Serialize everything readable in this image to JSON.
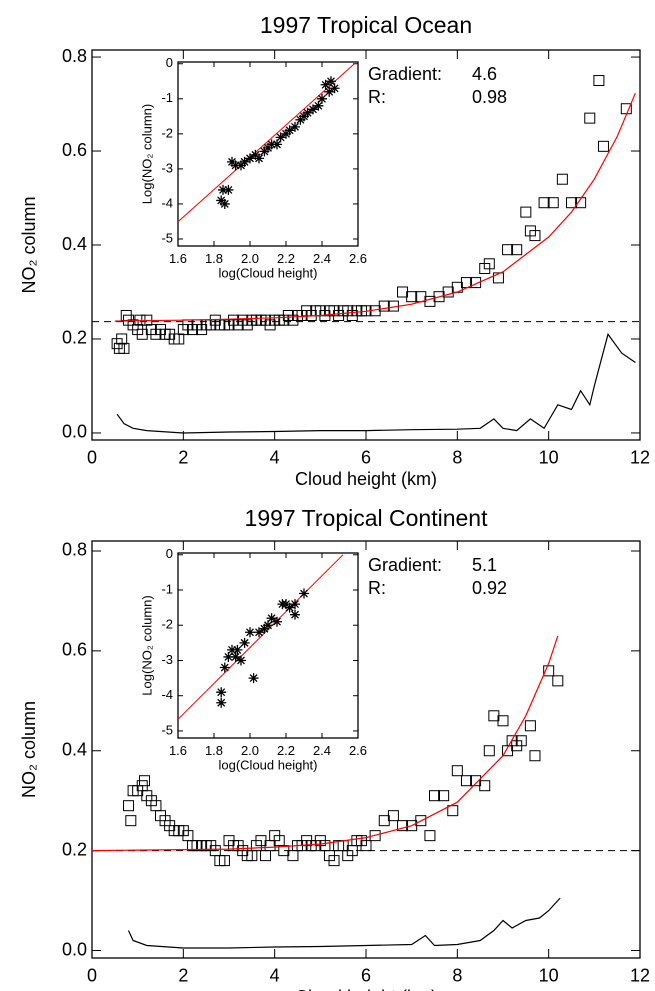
{
  "chart_data": [
    {
      "type": "scatter",
      "title": "1997 Tropical Ocean",
      "x_label": "Cloud height (km)",
      "y_label": "NO₂ column",
      "xlim": [
        0,
        12
      ],
      "ylim": [
        -0.015,
        0.815
      ],
      "xticks": [
        0,
        2,
        4,
        6,
        8,
        10,
        12
      ],
      "yticks": [
        {
          "value": 0,
          "label": "0.0"
        },
        0.2,
        0.4,
        0.6,
        0.8
      ],
      "points": {
        "color": "#000000",
        "x": [
          0.55,
          0.6,
          0.65,
          0.7,
          0.75,
          0.8,
          0.9,
          1.0,
          1.05,
          1.1,
          1.2,
          1.3,
          1.4,
          1.5,
          1.6,
          1.7,
          1.8,
          1.9,
          2.0,
          2.1,
          2.2,
          2.3,
          2.4,
          2.5,
          2.6,
          2.7,
          2.8,
          2.9,
          3.0,
          3.1,
          3.2,
          3.3,
          3.4,
          3.5,
          3.6,
          3.7,
          3.8,
          3.9,
          4.0,
          4.1,
          4.2,
          4.3,
          4.4,
          4.5,
          4.6,
          4.7,
          4.8,
          4.9,
          5.0,
          5.1,
          5.2,
          5.3,
          5.4,
          5.5,
          5.6,
          5.7,
          5.8,
          5.9,
          6.0,
          6.2,
          6.4,
          6.6,
          6.8,
          7.0,
          7.2,
          7.4,
          7.6,
          7.8,
          8.0,
          8.2,
          8.4,
          8.6,
          8.7,
          8.9,
          9.1,
          9.3,
          9.5,
          9.6,
          9.7,
          9.9,
          10.1,
          10.3,
          10.5,
          10.7,
          10.9,
          11.1,
          11.2,
          11.7
        ],
        "values": [
          0.19,
          0.18,
          0.2,
          0.18,
          0.25,
          0.24,
          0.23,
          0.22,
          0.24,
          0.21,
          0.24,
          0.22,
          0.21,
          0.22,
          0.21,
          0.21,
          0.2,
          0.2,
          0.22,
          0.23,
          0.22,
          0.23,
          0.22,
          0.23,
          0.23,
          0.24,
          0.23,
          0.23,
          0.23,
          0.24,
          0.23,
          0.24,
          0.23,
          0.24,
          0.24,
          0.24,
          0.24,
          0.23,
          0.24,
          0.24,
          0.24,
          0.25,
          0.24,
          0.25,
          0.25,
          0.26,
          0.25,
          0.26,
          0.26,
          0.25,
          0.26,
          0.26,
          0.25,
          0.26,
          0.26,
          0.25,
          0.26,
          0.26,
          0.26,
          0.26,
          0.27,
          0.27,
          0.3,
          0.29,
          0.29,
          0.28,
          0.29,
          0.3,
          0.31,
          0.32,
          0.32,
          0.35,
          0.36,
          0.33,
          0.39,
          0.39,
          0.47,
          0.43,
          0.42,
          0.49,
          0.49,
          0.54,
          0.49,
          0.49,
          0.67,
          0.75,
          0.61,
          0.69
        ]
      },
      "fit": {
        "color": "#ff0000",
        "x": [
          0.5,
          1,
          2,
          3,
          4,
          5,
          6,
          7,
          8,
          9,
          10,
          10.5,
          11,
          11.5,
          11.9
        ],
        "values": [
          0.238,
          0.239,
          0.24,
          0.242,
          0.245,
          0.25,
          0.259,
          0.274,
          0.3,
          0.343,
          0.417,
          0.47,
          0.54,
          0.631,
          0.723
        ]
      },
      "reference_line": 0.237,
      "lower_line": {
        "color": "#000000",
        "x": [
          0.55,
          0.7,
          0.9,
          1.2,
          2,
          3,
          4,
          5,
          6,
          7,
          8,
          8.5,
          8.8,
          9.0,
          9.3,
          9.6,
          9.9,
          10.2,
          10.5,
          10.7,
          10.9,
          11.0,
          11.3,
          11.6,
          11.9
        ],
        "values": [
          0.04,
          0.02,
          0.01,
          0.005,
          0.0,
          0.002,
          0.003,
          0.005,
          0.005,
          0.007,
          0.008,
          0.01,
          0.03,
          0.01,
          0.005,
          0.03,
          0.01,
          0.06,
          0.05,
          0.09,
          0.06,
          0.1,
          0.21,
          0.17,
          0.15
        ]
      },
      "annotations": [
        {
          "label": "Gradient:",
          "value": 4.6
        },
        {
          "label": "R:",
          "value": 0.98
        }
      ],
      "inset": {
        "x_label": "log(Cloud height)",
        "y_label": "Log(NO₂ column)",
        "xlim": [
          1.6,
          2.6
        ],
        "ylim": [
          -5.2,
          0.05
        ],
        "xticks": [
          1.6,
          1.8,
          {
            "value": 2,
            "label": "2.0"
          },
          2.2,
          2.4,
          2.6
        ],
        "yticks": [
          0,
          -1,
          -2,
          -3,
          -4,
          -5
        ],
        "points": {
          "x": [
            1.84,
            1.86,
            1.85,
            1.88,
            1.9,
            1.92,
            1.95,
            1.97,
            2.0,
            2.03,
            2.05,
            2.08,
            2.1,
            2.12,
            2.15,
            2.17,
            2.2,
            2.22,
            2.25,
            2.28,
            2.3,
            2.32,
            2.35,
            2.38,
            2.4,
            2.42,
            2.45,
            2.47,
            2.44
          ],
          "values": [
            -3.9,
            -4.0,
            -3.6,
            -3.6,
            -2.8,
            -2.9,
            -2.9,
            -2.8,
            -2.7,
            -2.6,
            -2.7,
            -2.5,
            -2.4,
            -2.3,
            -2.3,
            -2.1,
            -2.0,
            -1.9,
            -1.8,
            -1.6,
            -1.5,
            -1.4,
            -1.3,
            -1.2,
            -1.0,
            -0.6,
            -0.5,
            -0.7,
            -0.8
          ]
        },
        "fit": {
          "color": "#ff0000",
          "x": [
            1.6,
            2.58
          ],
          "values": [
            -4.51,
            0
          ]
        }
      }
    },
    {
      "type": "scatter",
      "title": "1997 Tropical Continent",
      "x_label": "Cloud height (km)",
      "y_label": "NO₂ column",
      "xlim": [
        0,
        12
      ],
      "ylim": [
        -0.015,
        0.82
      ],
      "xticks": [
        0,
        2,
        4,
        6,
        8,
        10,
        12
      ],
      "yticks": [
        {
          "value": 0,
          "label": "0.0"
        },
        0.2,
        0.4,
        0.6,
        0.8
      ],
      "points": {
        "color": "#000000",
        "x": [
          0.8,
          0.85,
          0.9,
          1.0,
          1.1,
          1.15,
          1.2,
          1.3,
          1.4,
          1.5,
          1.6,
          1.7,
          1.8,
          1.9,
          2.0,
          2.1,
          2.2,
          2.3,
          2.4,
          2.5,
          2.6,
          2.7,
          2.8,
          2.9,
          3.0,
          3.1,
          3.2,
          3.3,
          3.4,
          3.5,
          3.6,
          3.7,
          3.8,
          3.9,
          4.0,
          4.1,
          4.2,
          4.4,
          4.5,
          4.6,
          4.7,
          4.8,
          4.9,
          5.0,
          5.1,
          5.2,
          5.3,
          5.4,
          5.5,
          5.6,
          5.7,
          5.8,
          5.9,
          6.0,
          6.2,
          6.4,
          6.6,
          6.8,
          7.0,
          7.2,
          7.4,
          7.5,
          7.7,
          7.9,
          8.0,
          8.2,
          8.4,
          8.6,
          8.7,
          8.8,
          9.0,
          9.1,
          9.2,
          9.3,
          9.4,
          9.6,
          9.7,
          10.0,
          10.2
        ],
        "values": [
          0.29,
          0.26,
          0.32,
          0.32,
          0.33,
          0.34,
          0.31,
          0.3,
          0.29,
          0.27,
          0.26,
          0.25,
          0.24,
          0.24,
          0.24,
          0.23,
          0.21,
          0.21,
          0.21,
          0.21,
          0.21,
          0.2,
          0.18,
          0.18,
          0.22,
          0.21,
          0.21,
          0.2,
          0.19,
          0.19,
          0.21,
          0.22,
          0.19,
          0.21,
          0.23,
          0.22,
          0.2,
          0.19,
          0.21,
          0.21,
          0.22,
          0.21,
          0.21,
          0.22,
          0.21,
          0.19,
          0.18,
          0.21,
          0.21,
          0.19,
          0.2,
          0.22,
          0.22,
          0.21,
          0.23,
          0.26,
          0.27,
          0.25,
          0.25,
          0.26,
          0.23,
          0.31,
          0.31,
          0.28,
          0.36,
          0.34,
          0.34,
          0.33,
          0.4,
          0.47,
          0.46,
          0.4,
          0.42,
          0.41,
          0.42,
          0.45,
          0.39,
          0.56,
          0.54
        ]
      },
      "fit": {
        "color": "#ff0000",
        "x": [
          0,
          2,
          3,
          4,
          5,
          6,
          7,
          8,
          9,
          9.5,
          10,
          10.2
        ],
        "values": [
          0.2,
          0.202,
          0.203,
          0.207,
          0.213,
          0.226,
          0.25,
          0.297,
          0.39,
          0.47,
          0.575,
          0.63
        ]
      },
      "reference_line": 0.2,
      "lower_line": {
        "color": "#000000",
        "x": [
          0.8,
          0.9,
          1.2,
          2,
          3,
          4,
          5,
          6,
          7,
          7.3,
          7.5,
          8,
          8.5,
          8.8,
          9.0,
          9.2,
          9.5,
          9.8,
          10.0,
          10.1,
          10.25
        ],
        "values": [
          0.04,
          0.02,
          0.01,
          0.005,
          0.005,
          0.007,
          0.008,
          0.01,
          0.012,
          0.03,
          0.01,
          0.012,
          0.02,
          0.04,
          0.06,
          0.045,
          0.06,
          0.065,
          0.08,
          0.09,
          0.105
        ]
      },
      "annotations": [
        {
          "label": "Gradient:",
          "value": 5.1
        },
        {
          "label": "R:",
          "value": 0.92
        }
      ],
      "inset": {
        "x_label": "log(Cloud height)",
        "y_label": "Log(NO₂ column)",
        "xlim": [
          1.6,
          2.6
        ],
        "ylim": [
          -5.2,
          0.05
        ],
        "xticks": [
          1.6,
          1.8,
          {
            "value": 2,
            "label": "2.0"
          },
          2.2,
          2.4,
          2.6
        ],
        "yticks": [
          0,
          -1,
          -2,
          -3,
          -4,
          -5
        ],
        "points": {
          "x": [
            1.84,
            1.84,
            1.86,
            1.88,
            1.9,
            1.92,
            1.95,
            1.97,
            2.0,
            2.02,
            2.05,
            2.08,
            2.1,
            2.12,
            2.15,
            2.18,
            2.2,
            2.22,
            2.25,
            2.3,
            2.25,
            1.93
          ],
          "values": [
            -3.9,
            -4.2,
            -3.2,
            -2.9,
            -2.7,
            -2.9,
            -3.0,
            -2.5,
            -2.2,
            -3.5,
            -2.2,
            -2.1,
            -2.0,
            -1.8,
            -1.9,
            -1.4,
            -1.4,
            -1.5,
            -1.7,
            -1.1,
            -1.4,
            -2.7
          ]
        },
        "fit": {
          "color": "#ff0000",
          "x": [
            1.6,
            2.516
          ],
          "values": [
            -4.67,
            0
          ]
        }
      }
    }
  ]
}
